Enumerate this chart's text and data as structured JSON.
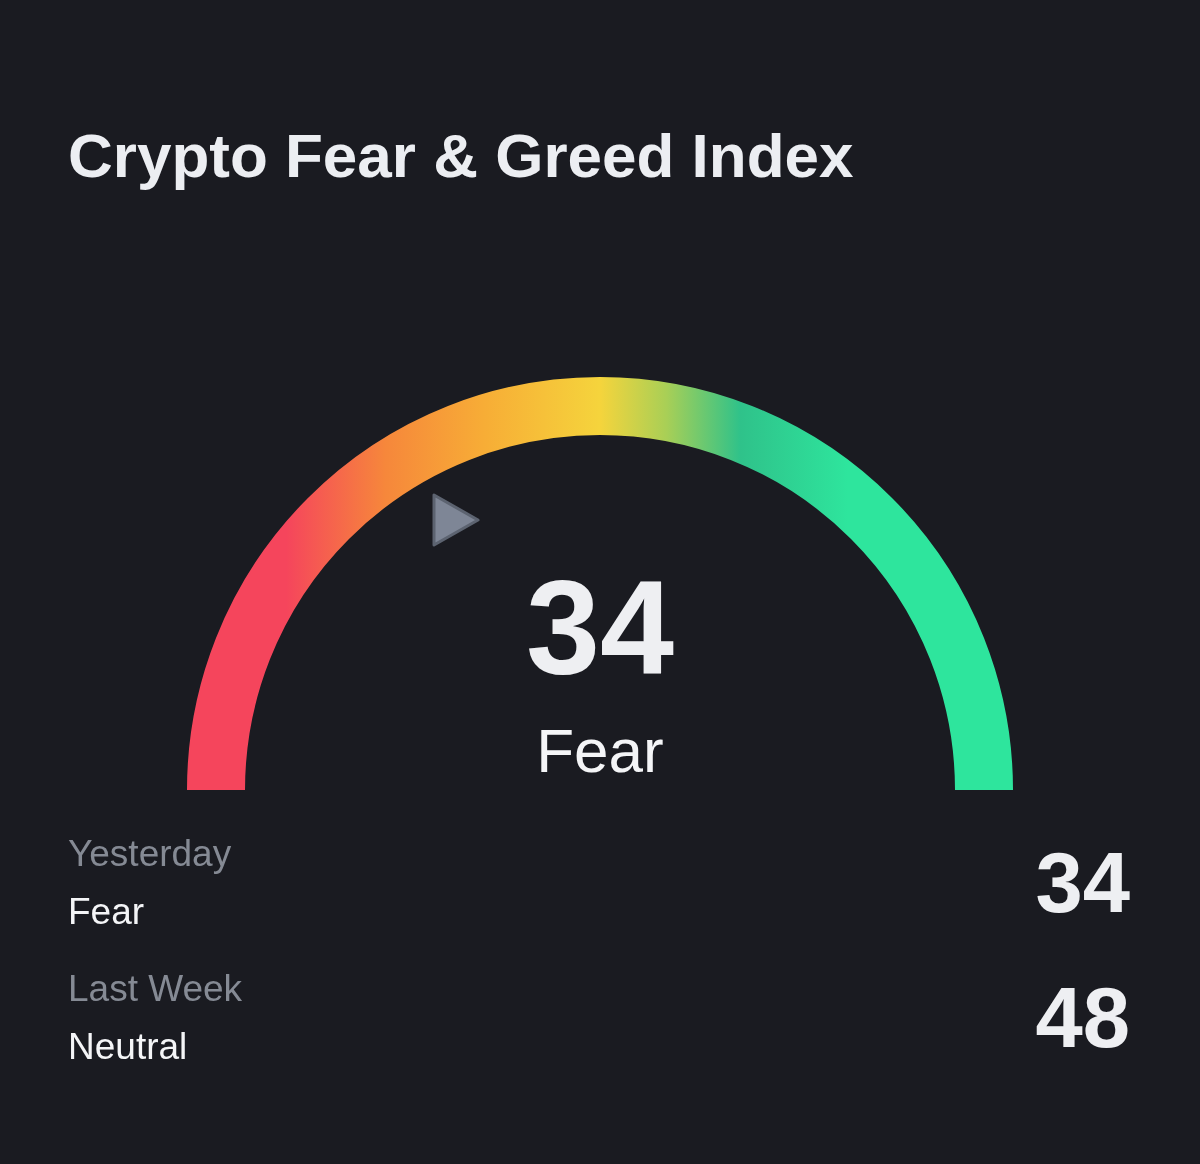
{
  "chart_data": {
    "type": "other",
    "title": "Crypto Fear & Greed Index",
    "categories": [
      null,
      "Yesterday",
      "Last Week"
    ],
    "values": [
      34,
      34,
      48
    ],
    "data_labels": true,
    "annotations": [
      "Fear",
      "Fear",
      "Neutral"
    ]
  }
}
